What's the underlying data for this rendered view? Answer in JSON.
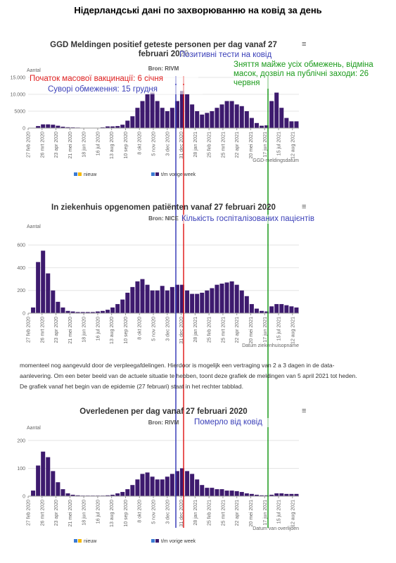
{
  "page_title": "Нідерландські дані по захворюванню на ковід за день",
  "annotations": [
    {
      "text": "Позитивні тести на ковід",
      "color": "#3a3fb8"
    },
    {
      "text": "Початок масової вакцинації: 6 січня",
      "color": "#e02020"
    },
    {
      "text": "Суворі обмеження: 15 грудня",
      "color": "#3a3fb8"
    },
    {
      "text": "Зняття майже усіх обмежень, відміна масок, дозвіл на публічні заходи: 26 червня",
      "color": "#1a9a1a"
    },
    {
      "text": "Кількість госпіталізованих пацієнтів",
      "color": "#3a3fb8"
    },
    {
      "text": "Померло від ковід",
      "color": "#3a3fb8"
    }
  ],
  "paragraph": "momenteel nog aangevuld door de verpleegafdelingen. Hierdoor is mogelijk een vertraging van 2 a 3 dagen in de data-aanlevering. Om een beter beeld van de actuele situatie te hebben, toont deze grafiek de meldingen van 5 april 2021 tot heden. De grafiek vanaf het begin van de epidemie (27 februari) staat in het rechter tabblad.",
  "chart_data": [
    {
      "type": "bar",
      "title": "GGD Meldingen positief geteste personen per dag vanaf 27 februari 2020",
      "subtitle": "Bron: RIVM",
      "ylabel": "Aantal",
      "xlabel": "GGD-meldingsdatum",
      "color": "#3d1a6e",
      "legend": [
        {
          "label": "nieuw",
          "color": "#f5b800"
        },
        {
          "label": "t/m vorige week",
          "color": "#3d1a6e"
        }
      ],
      "x": [
        0,
        10,
        20,
        30,
        40,
        50,
        60,
        70,
        80,
        90,
        100,
        110,
        120,
        130,
        140,
        150,
        160,
        170,
        180,
        190,
        200,
        210,
        220,
        230,
        240,
        250,
        260,
        270,
        280,
        290,
        300,
        310,
        320,
        330,
        340,
        350,
        360,
        370,
        380,
        390,
        400,
        410,
        420,
        430,
        440,
        450,
        460,
        470,
        480,
        490,
        500,
        510,
        520,
        530,
        540
      ],
      "values": [
        0,
        50,
        600,
        1100,
        1100,
        1000,
        700,
        400,
        250,
        200,
        150,
        100,
        80,
        80,
        100,
        200,
        500,
        500,
        600,
        1000,
        2200,
        3500,
        6000,
        8000,
        10000,
        10500,
        8000,
        6000,
        5000,
        6000,
        8000,
        11000,
        10000,
        7000,
        5000,
        4000,
        4500,
        5000,
        6000,
        7000,
        8000,
        8000,
        7000,
        6500,
        5000,
        3000,
        1500,
        700,
        800,
        8000,
        10500,
        6000,
        3000,
        2000,
        2000
      ],
      "xlim": [
        0,
        545
      ],
      "ylim": [
        0,
        15000
      ],
      "yticks": [
        0,
        5000,
        {
          "value": 10000,
          "label": "10.000"
        },
        {
          "value": 15000,
          "label": "15.000"
        }
      ],
      "xticks": [
        {
          "value": 0,
          "label": "27 feb 2020"
        },
        {
          "value": 28,
          "label": "26 mrt 2020"
        },
        {
          "value": 56,
          "label": "23 apr 2020"
        },
        {
          "value": 84,
          "label": "21 mei 2020"
        },
        {
          "value": 112,
          "label": "18 jun 2020"
        },
        {
          "value": 140,
          "label": "16 jul 2020"
        },
        {
          "value": 168,
          "label": "13 aug 2020"
        },
        {
          "value": 196,
          "label": "10 sep 2020"
        },
        {
          "value": 224,
          "label": "8 okt 2020"
        },
        {
          "value": 252,
          "label": "5 nov 2020"
        },
        {
          "value": 280,
          "label": "3 dec 2020"
        },
        {
          "value": 308,
          "label": "31 dec 2020"
        },
        {
          "value": 336,
          "label": "28 jan 2021"
        },
        {
          "value": 364,
          "label": "25 feb 2021"
        },
        {
          "value": 392,
          "label": "25 mrt 2021"
        },
        {
          "value": 420,
          "label": "22 apr 2021"
        },
        {
          "value": 448,
          "label": "20 mei 2021"
        },
        {
          "value": 476,
          "label": "17 jun 2021"
        },
        {
          "value": 504,
          "label": "15 jul 2021"
        },
        {
          "value": 532,
          "label": "12 aug 2021"
        }
      ]
    },
    {
      "type": "bar",
      "title": "In ziekenhuis opgenomen patiënten vanaf 27 februari 2020",
      "subtitle": "Bron: NICE",
      "ylabel": "Aantal",
      "xlabel": "Datum ziekenhuisopname",
      "color": "#3d1a6e",
      "x": [
        0,
        10,
        20,
        30,
        40,
        50,
        60,
        70,
        80,
        90,
        100,
        110,
        120,
        130,
        140,
        150,
        160,
        170,
        180,
        190,
        200,
        210,
        220,
        230,
        240,
        250,
        260,
        270,
        280,
        290,
        300,
        310,
        320,
        330,
        340,
        350,
        360,
        370,
        380,
        390,
        400,
        410,
        420,
        430,
        440,
        450,
        460,
        470,
        480,
        490,
        500,
        510,
        520,
        530,
        540
      ],
      "values": [
        0,
        50,
        450,
        550,
        350,
        200,
        100,
        50,
        20,
        15,
        10,
        10,
        10,
        10,
        15,
        20,
        30,
        50,
        80,
        120,
        180,
        230,
        280,
        300,
        250,
        200,
        200,
        240,
        200,
        230,
        250,
        250,
        200,
        170,
        170,
        180,
        200,
        220,
        250,
        260,
        270,
        280,
        250,
        200,
        150,
        80,
        40,
        20,
        15,
        60,
        80,
        80,
        70,
        60,
        50
      ],
      "xlim": [
        0,
        545
      ],
      "ylim": [
        0,
        700
      ],
      "yticks": [
        0,
        200,
        400,
        600
      ],
      "xticks": [
        {
          "value": 0,
          "label": "27 feb 2020"
        },
        {
          "value": 28,
          "label": "26 mrt 2020"
        },
        {
          "value": 56,
          "label": "23 apr 2020"
        },
        {
          "value": 84,
          "label": "21 mei 2020"
        },
        {
          "value": 112,
          "label": "18 jun 2020"
        },
        {
          "value": 140,
          "label": "16 jul 2020"
        },
        {
          "value": 168,
          "label": "13 aug 2020"
        },
        {
          "value": 196,
          "label": "10 sep 2020"
        },
        {
          "value": 224,
          "label": "8 okt 2020"
        },
        {
          "value": 252,
          "label": "5 nov 2020"
        },
        {
          "value": 280,
          "label": "3 dec 2020"
        },
        {
          "value": 308,
          "label": "31 dec 2020"
        },
        {
          "value": 336,
          "label": "28 jan 2021"
        },
        {
          "value": 364,
          "label": "25 feb 2021"
        },
        {
          "value": 392,
          "label": "25 mrt 2021"
        },
        {
          "value": 420,
          "label": "22 apr 2021"
        },
        {
          "value": 448,
          "label": "20 mei 2021"
        },
        {
          "value": 476,
          "label": "17 jun 2021"
        },
        {
          "value": 504,
          "label": "15 jul 2021"
        },
        {
          "value": 532,
          "label": "12 aug 2021"
        }
      ]
    },
    {
      "type": "bar",
      "title": "Overledenen per dag vanaf 27 februari 2020",
      "subtitle": "Bron: RIVM",
      "ylabel": "Aantal",
      "xlabel": "Datum van overlijden",
      "color": "#3d1a6e",
      "legend": [
        {
          "label": "nieuw",
          "color": "#f5b800"
        },
        {
          "label": "t/m vorige week",
          "color": "#3d1a6e"
        }
      ],
      "x": [
        0,
        10,
        20,
        30,
        40,
        50,
        60,
        70,
        80,
        90,
        100,
        110,
        120,
        130,
        140,
        150,
        160,
        170,
        180,
        190,
        200,
        210,
        220,
        230,
        240,
        250,
        260,
        270,
        280,
        290,
        300,
        310,
        320,
        330,
        340,
        350,
        360,
        370,
        380,
        390,
        400,
        410,
        420,
        430,
        440,
        450,
        460,
        470,
        480,
        490,
        500,
        510,
        520,
        530,
        540
      ],
      "values": [
        0,
        20,
        110,
        160,
        140,
        90,
        50,
        25,
        10,
        5,
        3,
        2,
        2,
        2,
        2,
        2,
        3,
        5,
        10,
        15,
        25,
        40,
        60,
        80,
        85,
        70,
        60,
        60,
        70,
        80,
        90,
        100,
        90,
        80,
        60,
        40,
        30,
        30,
        25,
        25,
        20,
        20,
        18,
        15,
        10,
        8,
        5,
        3,
        3,
        5,
        10,
        10,
        8,
        8,
        8
      ],
      "xlim": [
        0,
        545
      ],
      "ylim": [
        0,
        220
      ],
      "yticks": [
        0,
        100,
        200
      ],
      "xticks": [
        {
          "value": 0,
          "label": "27 feb 2020"
        },
        {
          "value": 28,
          "label": "26 mrt 2020"
        },
        {
          "value": 56,
          "label": "23 apr 2020"
        },
        {
          "value": 84,
          "label": "21 mei 2020"
        },
        {
          "value": 112,
          "label": "18 jun 2020"
        },
        {
          "value": 140,
          "label": "16 jul 2020"
        },
        {
          "value": 168,
          "label": "13 aug 2020"
        },
        {
          "value": 196,
          "label": "10 sep 2020"
        },
        {
          "value": 224,
          "label": "8 okt 2020"
        },
        {
          "value": 252,
          "label": "5 nov 2020"
        },
        {
          "value": 280,
          "label": "3 dec 2020"
        },
        {
          "value": 308,
          "label": "31 dec 2020"
        },
        {
          "value": 336,
          "label": "28 jan 2021"
        },
        {
          "value": 364,
          "label": "25 feb 2021"
        },
        {
          "value": 392,
          "label": "25 mrt 2021"
        },
        {
          "value": 420,
          "label": "22 apr 2021"
        },
        {
          "value": 448,
          "label": "20 mei 2021"
        },
        {
          "value": 476,
          "label": "17 jun 2021"
        },
        {
          "value": 504,
          "label": "15 jul 2021"
        },
        {
          "value": 532,
          "label": "12 aug 2021"
        }
      ]
    }
  ]
}
